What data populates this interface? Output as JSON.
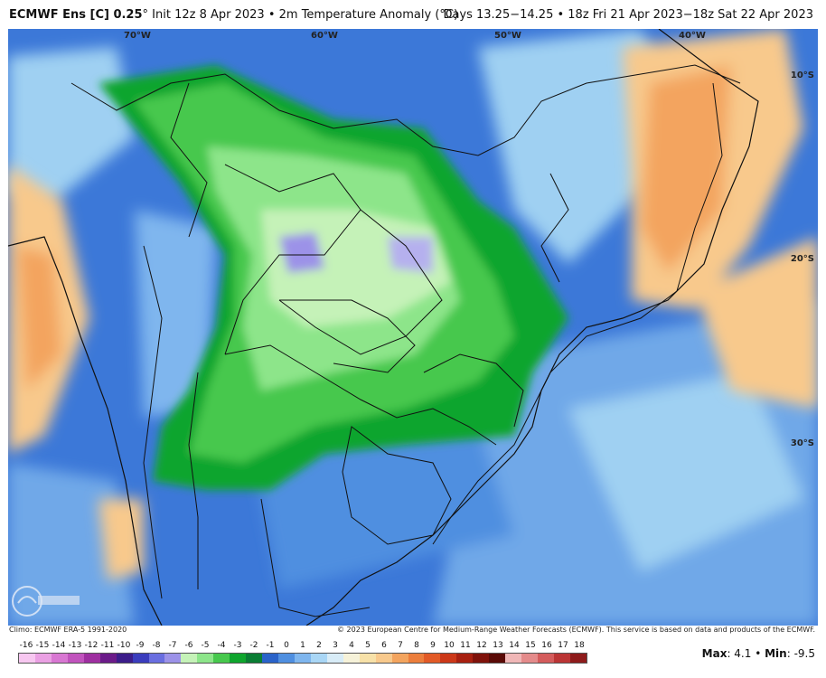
{
  "header": {
    "model": "ECMWF Ens [C] 0.25",
    "degree": "°",
    "init": " Init 12z 8 Apr 2023",
    "separator": " • ",
    "field": "2m Temperature Anomaly (°C)",
    "valid": "Days 13.25−14.25 • 18z Fri 21 Apr 2023−18z Sat 22 Apr 2023"
  },
  "map": {
    "longitudes": [
      "70°W",
      "60°W",
      "50°W",
      "40°W"
    ],
    "latitudes": [
      "10°S",
      "20°S",
      "30°S"
    ],
    "colors": {
      "ocean_base": "#3c78d8",
      "light_blue": "#9fd0f2",
      "pale": "#d8ecf7",
      "green_light": "#c5f2b8",
      "green_mid": "#63d866",
      "green_dark": "#0fa52d",
      "purple": "#9c92e8",
      "orange_light": "#f8c98c",
      "orange": "#f3a45e",
      "border": "#111111"
    }
  },
  "footer": {
    "climo": "Climo: ECMWF ERA-5 1991-2020",
    "copyright": "© 2023 European Centre for Medium-Range Weather Forecasts (ECMWF). This service is based on data and products of the ECMWF."
  },
  "colorbar": {
    "ticks": [
      "-16",
      "-15",
      "-14",
      "-13",
      "-12",
      "-11",
      "-10",
      "-9",
      "-8",
      "-7",
      "-6",
      "-5",
      "-4",
      "-3",
      "-2",
      "-1",
      "0",
      "1",
      "2",
      "3",
      "4",
      "5",
      "6",
      "7",
      "8",
      "9",
      "10",
      "11",
      "12",
      "13",
      "14",
      "15",
      "16",
      "17",
      "18"
    ],
    "colors": [
      "#f7c7f0",
      "#eaa0e3",
      "#d877d2",
      "#c153bd",
      "#9e2fa0",
      "#6b1b89",
      "#3c1d8a",
      "#3b3dbd",
      "#6a6ee0",
      "#9c92e8",
      "#c5f2b8",
      "#8de58a",
      "#47c84d",
      "#0fa52d",
      "#0a7d33",
      "#2a63c9",
      "#4f8fe0",
      "#7fb6ee",
      "#a9d6f5",
      "#d8ecf7",
      "#f6f2d9",
      "#f7e1a8",
      "#f8c98c",
      "#f3a45e",
      "#ec7e3c",
      "#e25a26",
      "#cc3818",
      "#a82010",
      "#7f120b",
      "#5a0a06",
      "#f0b7b7",
      "#e48b8b",
      "#d45c5c",
      "#bb3535",
      "#8e1b1b"
    ]
  },
  "stats": {
    "max_label": "Max",
    "max_value": ": 4.1",
    "separator": " • ",
    "min_label": "Min",
    "min_value": ": -9.5"
  },
  "logo": {
    "icon": "weatherbell-logo"
  }
}
